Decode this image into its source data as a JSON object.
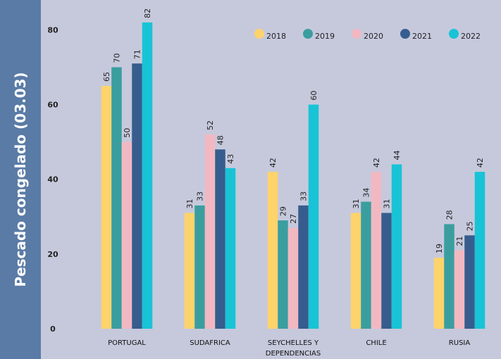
{
  "side_label": "Pescado congelado (03.03)",
  "chart_data": {
    "type": "bar",
    "categories": [
      "PORTUGAL",
      "SUDAFRICA",
      "SEYCHELLES Y DEPENDENCIAS",
      "CHILE",
      "RUSIA"
    ],
    "series": [
      {
        "name": "2018",
        "color": "#fdd36b",
        "values": [
          65,
          31,
          42,
          31,
          19
        ]
      },
      {
        "name": "2019",
        "color": "#3a9e9f",
        "values": [
          70,
          33,
          29,
          34,
          28
        ]
      },
      {
        "name": "2020",
        "color": "#f2b8c2",
        "values": [
          50,
          52,
          27,
          42,
          21
        ]
      },
      {
        "name": "2021",
        "color": "#365d8d",
        "values": [
          71,
          48,
          33,
          31,
          25
        ]
      },
      {
        "name": "2022",
        "color": "#19c3d6",
        "values": [
          82,
          43,
          60,
          44,
          42
        ]
      }
    ],
    "ylim": [
      0,
      88
    ],
    "yticks": [
      0,
      20,
      40,
      60,
      80
    ],
    "grid": false,
    "legend": "top-right"
  }
}
